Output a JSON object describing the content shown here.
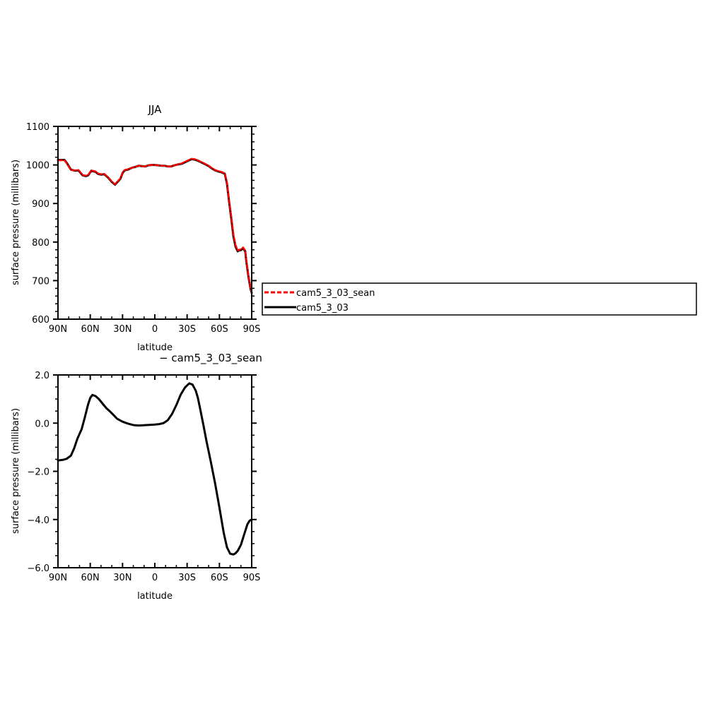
{
  "chart_data": [
    {
      "type": "line",
      "title": "JJA",
      "xlabel": "latitude",
      "ylabel": "surface pressure (millibars)",
      "xlim": [
        -90,
        90
      ],
      "ylim": [
        600,
        1100
      ],
      "x_ticks": [
        -90,
        -60,
        -30,
        0,
        30,
        60,
        90
      ],
      "x_tick_labels": [
        "90N",
        "60N",
        "30N",
        "0",
        "30S",
        "60S",
        "90S"
      ],
      "y_ticks": [
        600,
        700,
        800,
        900,
        1000,
        1100
      ],
      "y_tick_labels": [
        "600",
        "700",
        "800",
        "900",
        "1000",
        "1100"
      ],
      "legend": {
        "position": "right",
        "entries": [
          {
            "label": "cam5_3_03_sean",
            "color": "#ff0000",
            "style": "dashed"
          },
          {
            "label": "cam5_3_03",
            "color": "#000000",
            "style": "solid"
          }
        ]
      },
      "series": [
        {
          "name": "cam5_3_03_sean",
          "color": "#ff0000",
          "style": "dashed",
          "x": [
            -90,
            -84,
            -82,
            -78,
            -74,
            -71,
            -67,
            -64,
            -62,
            -59,
            -55,
            -53,
            -50,
            -47,
            -45,
            -43,
            -40,
            -37,
            -35,
            -32,
            -30,
            -28,
            -25,
            -21,
            -18,
            -15,
            -12,
            -9,
            -6,
            -3,
            0,
            3,
            6,
            9,
            12,
            15,
            18,
            21,
            25,
            28,
            31,
            34,
            37,
            40,
            43,
            46,
            50,
            53,
            56,
            59,
            62,
            65,
            67,
            69,
            71,
            73,
            75,
            77,
            78,
            80,
            82,
            84,
            85,
            87,
            89,
            90
          ],
          "y": [
            1012,
            1012,
            1005,
            987,
            986,
            987,
            974,
            972,
            974,
            986,
            983,
            978,
            976,
            977,
            972,
            967,
            957,
            950,
            956,
            965,
            980,
            987,
            989,
            993,
            995,
            998,
            997,
            996,
            999,
            1000,
            1000,
            999,
            998,
            998,
            996,
            996,
            999,
            1001,
            1004,
            1008,
            1012,
            1016,
            1015,
            1012,
            1008,
            1004,
            998,
            992,
            987,
            984,
            982,
            978,
            955,
            908,
            866,
            820,
            792,
            778,
            780,
            781,
            786,
            778,
            752,
            712,
            680,
            670
          ]
        },
        {
          "name": "cam5_3_03",
          "color": "#000000",
          "style": "solid",
          "x": [
            -90,
            -84,
            -82,
            -78,
            -74,
            -71,
            -67,
            -64,
            -62,
            -59,
            -55,
            -53,
            -50,
            -47,
            -45,
            -43,
            -40,
            -37,
            -35,
            -32,
            -30,
            -28,
            -25,
            -21,
            -18,
            -15,
            -12,
            -9,
            -6,
            -3,
            0,
            3,
            6,
            9,
            12,
            15,
            18,
            21,
            25,
            28,
            31,
            34,
            37,
            40,
            43,
            46,
            50,
            53,
            56,
            59,
            62,
            65,
            67,
            69,
            71,
            73,
            75,
            77,
            78,
            80,
            82,
            84,
            85,
            87,
            89,
            90
          ],
          "y": [
            1013,
            1013,
            1006,
            988,
            985,
            986,
            973,
            971,
            973,
            985,
            982,
            977,
            975,
            976,
            971,
            966,
            956,
            949,
            955,
            964,
            979,
            986,
            988,
            993,
            995,
            998,
            997,
            996,
            999,
            1000,
            1000,
            999,
            998,
            998,
            996,
            996,
            999,
            1001,
            1003,
            1007,
            1011,
            1015,
            1014,
            1011,
            1007,
            1003,
            997,
            991,
            986,
            983,
            981,
            977,
            952,
            905,
            862,
            815,
            788,
            776,
            778,
            779,
            784,
            776,
            750,
            710,
            678,
            668
          ]
        }
      ]
    },
    {
      "type": "line",
      "title": "− cam5_3_03_sean",
      "xlabel": "latitude",
      "ylabel": "surface pressure (millibars)",
      "xlim": [
        -90,
        90
      ],
      "ylim": [
        -6.0,
        2.0
      ],
      "x_ticks": [
        -90,
        -60,
        -30,
        0,
        30,
        60,
        90
      ],
      "x_tick_labels": [
        "90N",
        "60N",
        "30N",
        "0",
        "30S",
        "60S",
        "90S"
      ],
      "y_ticks": [
        -6.0,
        -4.0,
        -2.0,
        0.0,
        2.0
      ],
      "y_tick_labels": [
        "−6.0",
        "−4.0",
        "−2.0",
        "0.0",
        "2.0"
      ],
      "series": [
        {
          "color": "#000000",
          "style": "solid",
          "x": [
            -90,
            -85,
            -82,
            -78,
            -75,
            -72,
            -68,
            -65,
            -62,
            -60,
            -58,
            -55,
            -52,
            -48,
            -45,
            -42,
            -38,
            -35,
            -30,
            -25,
            -20,
            -15,
            -12,
            -8,
            -4,
            0,
            4,
            8,
            12,
            16,
            20,
            24,
            28,
            32,
            35,
            38,
            40,
            42,
            45,
            48,
            52,
            56,
            60,
            64,
            67,
            70,
            73,
            75,
            77,
            80,
            83,
            86,
            88,
            90
          ],
          "y": [
            -1.55,
            -1.52,
            -1.48,
            -1.35,
            -1.05,
            -0.65,
            -0.25,
            0.25,
            0.78,
            1.05,
            1.17,
            1.12,
            1.0,
            0.78,
            0.62,
            0.5,
            0.32,
            0.18,
            0.06,
            -0.02,
            -0.08,
            -0.1,
            -0.09,
            -0.08,
            -0.07,
            -0.06,
            -0.04,
            0.0,
            0.12,
            0.38,
            0.75,
            1.18,
            1.48,
            1.65,
            1.6,
            1.35,
            1.05,
            0.62,
            -0.05,
            -0.75,
            -1.6,
            -2.5,
            -3.5,
            -4.55,
            -5.15,
            -5.42,
            -5.45,
            -5.4,
            -5.3,
            -5.05,
            -4.62,
            -4.2,
            -4.05,
            -4.0
          ]
        }
      ]
    }
  ]
}
